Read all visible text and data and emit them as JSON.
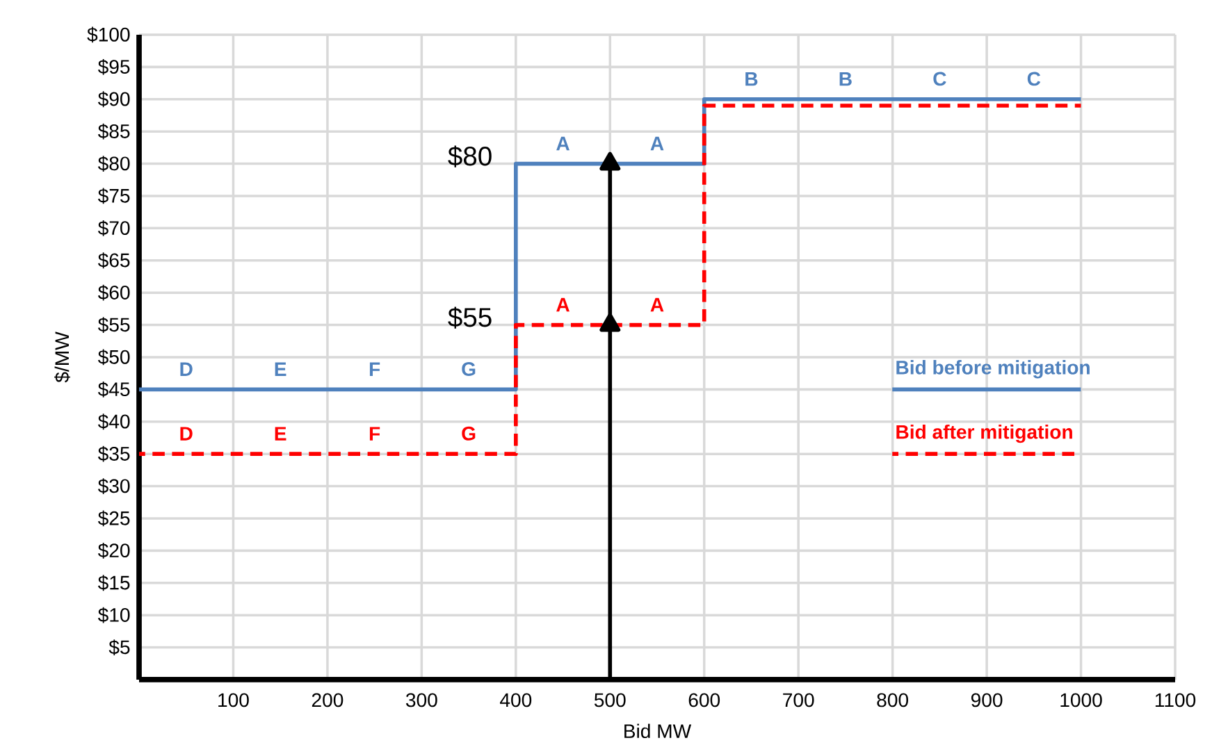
{
  "chart_data": {
    "type": "step",
    "xlabel": "Bid MW",
    "ylabel": "$/MW",
    "xlim": [
      0,
      1100
    ],
    "ylim": [
      0,
      100
    ],
    "xticks": [
      100,
      200,
      300,
      400,
      500,
      600,
      700,
      800,
      900,
      1000,
      1100
    ],
    "yticks": [
      {
        "value": 5,
        "label": "$5"
      },
      {
        "value": 10,
        "label": "$10"
      },
      {
        "value": 15,
        "label": "$15"
      },
      {
        "value": 20,
        "label": "$20"
      },
      {
        "value": 25,
        "label": "$25"
      },
      {
        "value": 30,
        "label": "$30"
      },
      {
        "value": 35,
        "label": "$35"
      },
      {
        "value": 40,
        "label": "$40"
      },
      {
        "value": 45,
        "label": "$45"
      },
      {
        "value": 50,
        "label": "$50"
      },
      {
        "value": 55,
        "label": "$55"
      },
      {
        "value": 60,
        "label": "$60"
      },
      {
        "value": 65,
        "label": "$65"
      },
      {
        "value": 70,
        "label": "$70"
      },
      {
        "value": 75,
        "label": "$75"
      },
      {
        "value": 80,
        "label": "$80"
      },
      {
        "value": 85,
        "label": "$85"
      },
      {
        "value": 90,
        "label": "$90"
      },
      {
        "value": 95,
        "label": "$95"
      },
      {
        "value": 100,
        "label": "$100"
      }
    ],
    "grid": true,
    "legend": "right",
    "series": [
      {
        "name": "Bid before mitigation",
        "color": "#4f81bd",
        "line_style": "solid",
        "x": [
          0,
          400,
          600,
          1000
        ],
        "values": [
          45,
          80,
          90,
          90
        ]
      },
      {
        "name": "Bid after mitigation",
        "color": "#ff0000",
        "line_style": "dashed",
        "x": [
          0,
          400,
          600,
          1000
        ],
        "values": [
          35,
          55,
          89,
          89
        ]
      },
      {
        "type": "line",
        "color": "#000000",
        "line_style": "solid",
        "marker": "triangle",
        "x": [
          500,
          500,
          500
        ],
        "values": [
          0,
          55,
          80
        ]
      }
    ],
    "annotations": [
      {
        "text": "D",
        "x": 50,
        "y": 45
      },
      {
        "text": "E",
        "x": 150,
        "y": 45
      },
      {
        "text": "F",
        "x": 250,
        "y": 45
      },
      {
        "text": "G",
        "x": 350,
        "y": 45
      },
      {
        "text": "A",
        "x": 450,
        "y": 80
      },
      {
        "text": "A",
        "x": 550,
        "y": 80
      },
      {
        "text": "B",
        "x": 650,
        "y": 90
      },
      {
        "text": "B",
        "x": 750,
        "y": 90
      },
      {
        "text": "C",
        "x": 850,
        "y": 90
      },
      {
        "text": "C",
        "x": 950,
        "y": 90
      },
      {
        "text": "D",
        "x": 50,
        "y": 35
      },
      {
        "text": "E",
        "x": 150,
        "y": 35
      },
      {
        "text": "F",
        "x": 250,
        "y": 35
      },
      {
        "text": "G",
        "x": 350,
        "y": 35
      },
      {
        "text": "A",
        "x": 450,
        "y": 55
      },
      {
        "text": "A",
        "x": 550,
        "y": 55
      },
      {
        "text": "$80",
        "x": 400,
        "y": 80
      },
      {
        "text": "$55",
        "x": 400,
        "y": 55
      }
    ]
  }
}
